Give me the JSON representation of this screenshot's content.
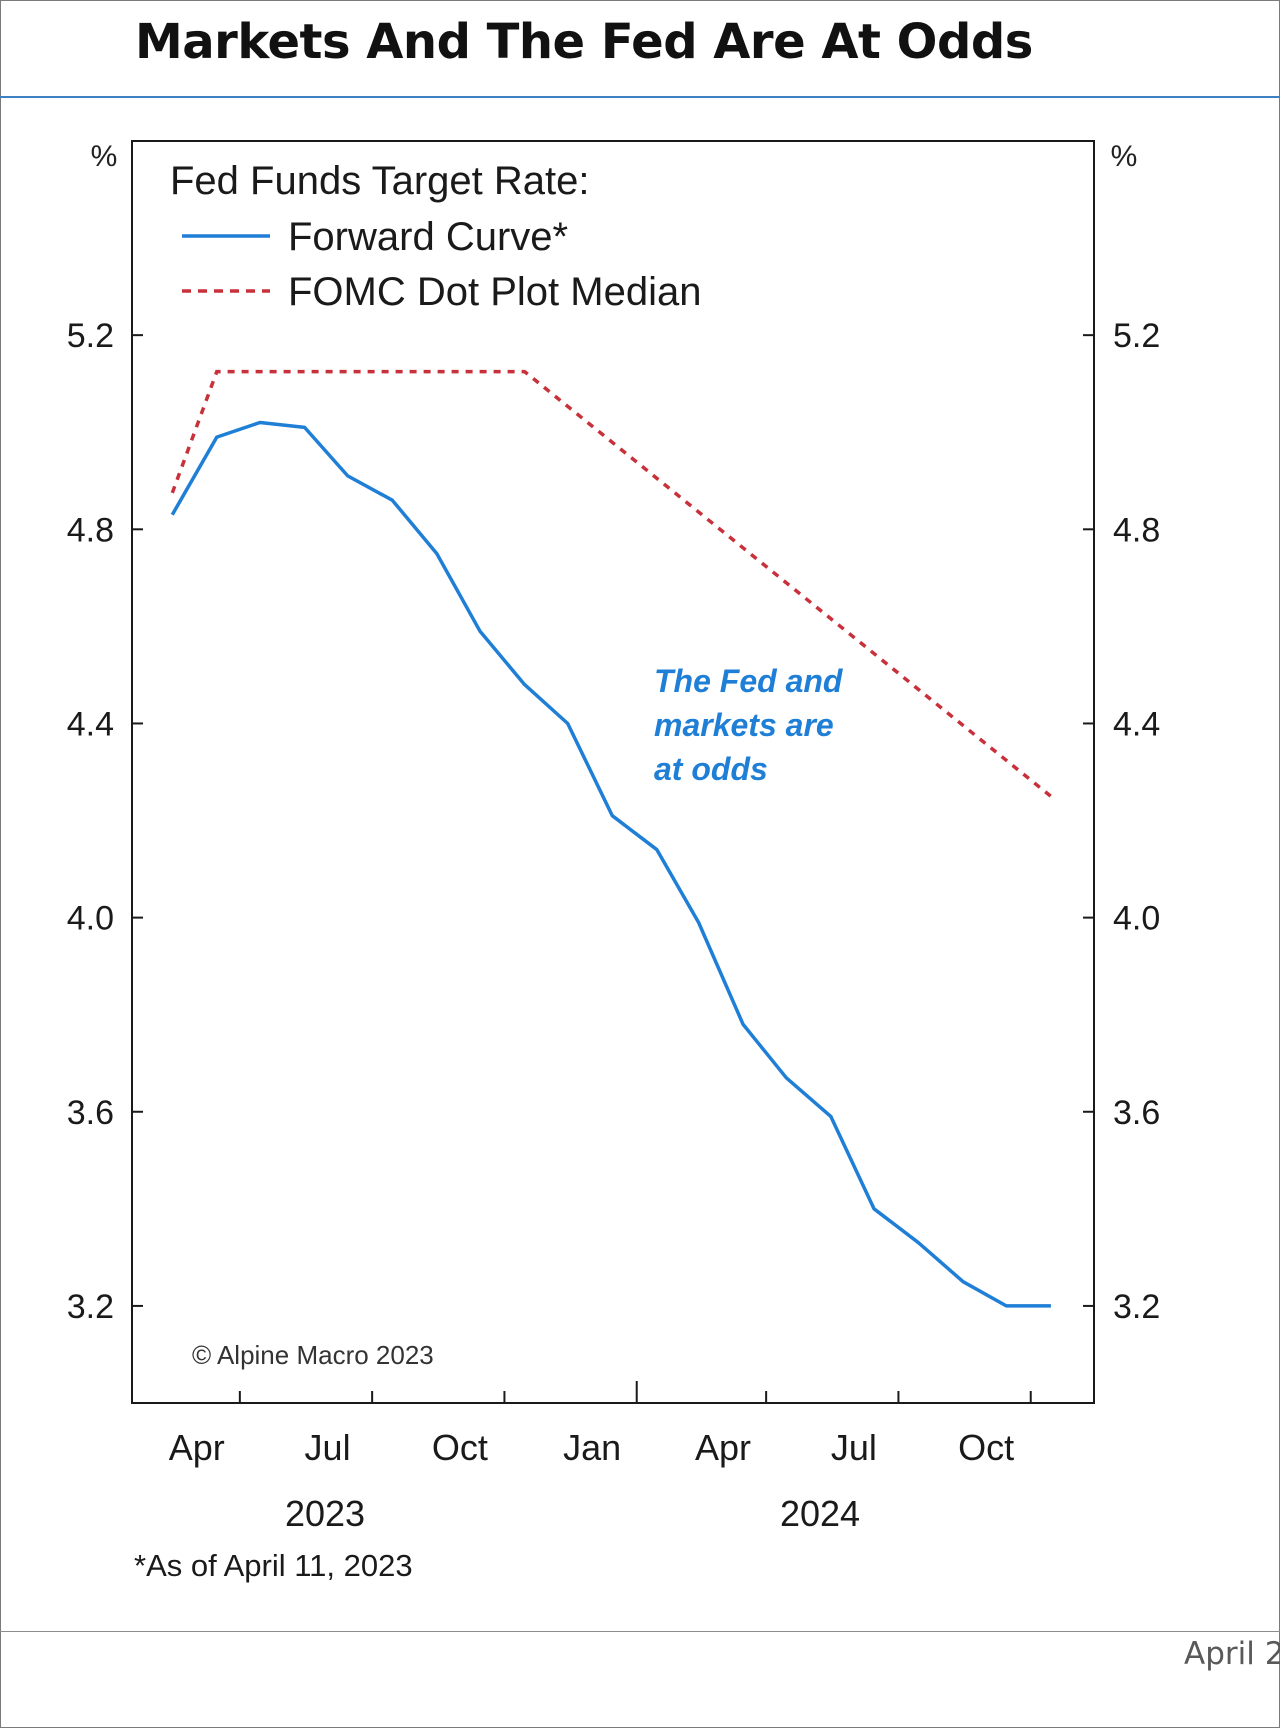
{
  "page": {
    "title": "Markets And The Fed Are At Odds",
    "footer_date": "April 2"
  },
  "chart_data": {
    "type": "line",
    "left_axis_unit": "%",
    "right_axis_unit": "%",
    "y_ticks": [
      "3.2",
      "3.6",
      "4.0",
      "4.4",
      "4.8",
      "5.2"
    ],
    "ylim": [
      3.0,
      5.6
    ],
    "x_ticks": [
      "Apr",
      "Jul",
      "Oct",
      "Jan",
      "Apr",
      "Jul",
      "Oct"
    ],
    "years": [
      "2023",
      "2024"
    ],
    "xlim": [
      "2023-02-15",
      "2024-12-15"
    ],
    "legend_title": "Fed Funds Target Rate:",
    "legend_position": "top-left",
    "grid": false,
    "series": [
      {
        "name": "Forward Curve*",
        "color": "#1f7fd6",
        "style": "solid",
        "points": [
          [
            "2023-03-15",
            4.83
          ],
          [
            "2023-04-15",
            4.99
          ],
          [
            "2023-05-15",
            5.02
          ],
          [
            "2023-06-15",
            5.01
          ],
          [
            "2023-07-15",
            4.91
          ],
          [
            "2023-08-15",
            4.86
          ],
          [
            "2023-09-15",
            4.75
          ],
          [
            "2023-10-15",
            4.59
          ],
          [
            "2023-11-15",
            4.48
          ],
          [
            "2023-12-15",
            4.4
          ],
          [
            "2024-01-15",
            4.21
          ],
          [
            "2024-02-15",
            4.14
          ],
          [
            "2024-03-15",
            3.99
          ],
          [
            "2024-04-15",
            3.78
          ],
          [
            "2024-05-15",
            3.67
          ],
          [
            "2024-06-15",
            3.59
          ],
          [
            "2024-07-15",
            3.4
          ],
          [
            "2024-08-15",
            3.33
          ],
          [
            "2024-09-15",
            3.25
          ],
          [
            "2024-10-15",
            3.2
          ],
          [
            "2024-11-15",
            3.2
          ]
        ]
      },
      {
        "name": "FOMC Dot Plot Median",
        "color": "#c8313a",
        "style": "dashed",
        "points": [
          [
            "2023-03-15",
            4.875
          ],
          [
            "2023-04-15",
            5.125
          ],
          [
            "2023-11-15",
            5.125
          ],
          [
            "2024-11-15",
            4.25
          ]
        ]
      }
    ],
    "annotation": [
      "The Fed and",
      "markets are",
      "at odds"
    ],
    "annotation_color": "#1f7fd6",
    "copyright": "© Alpine Macro 2023",
    "footnote": "*As of April 11, 2023"
  }
}
